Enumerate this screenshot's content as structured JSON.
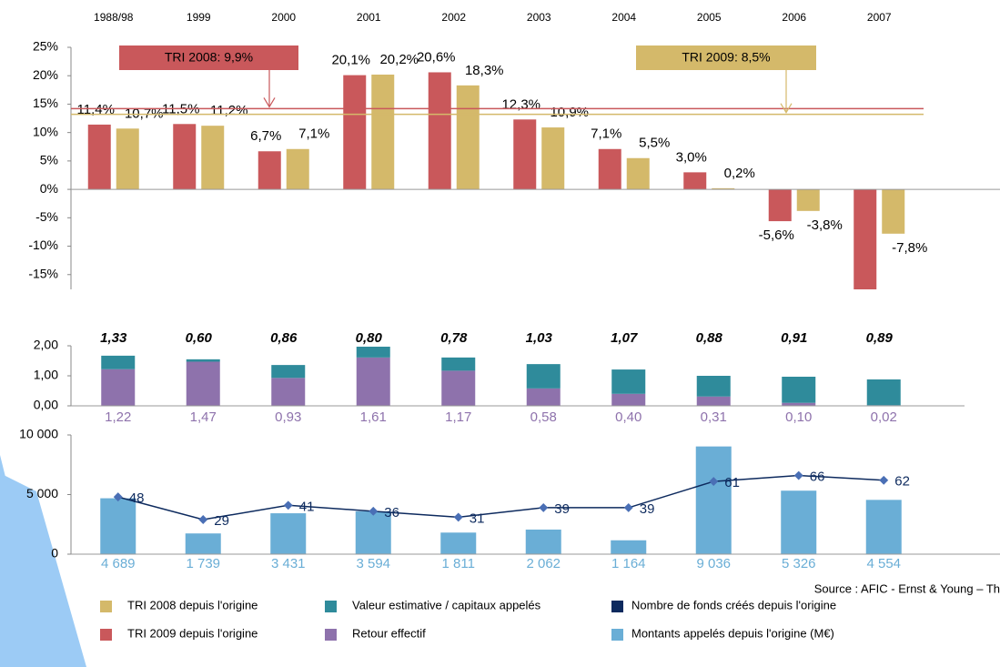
{
  "chart_data": [
    {
      "type": "bar",
      "categories": [
        "1988/98",
        "1999",
        "2000",
        "2001",
        "2002",
        "2003",
        "2004",
        "2005",
        "2006",
        "2007"
      ],
      "series": [
        {
          "name": "TRI 2009 depuis l'origine",
          "color": "#c9585b",
          "values": [
            11.4,
            11.5,
            6.7,
            20.1,
            20.6,
            12.3,
            7.1,
            3.0,
            -5.6,
            -17.6
          ],
          "value_labels": [
            "11,4%",
            "11,5%",
            "6,7%",
            "20,1%",
            "20,6%",
            "12,3%",
            "7,1%",
            "3,0%",
            "-5,6%",
            null
          ]
        },
        {
          "name": "TRI 2008 depuis l'origine",
          "color": "#d4b96a",
          "values": [
            10.7,
            11.2,
            7.1,
            20.2,
            18.3,
            10.9,
            5.5,
            0.2,
            -3.8,
            -7.8
          ],
          "value_labels": [
            "10,7%",
            "11,2%",
            "7,1%",
            "20,2%",
            "18,3%",
            "10,9%",
            "5,5%",
            "0,2%",
            "-3,8%",
            "-7,8%"
          ]
        }
      ],
      "ylim": [
        -17.6,
        25
      ],
      "yticks": [
        {
          "value": 25,
          "label": "25%"
        },
        {
          "value": 20,
          "label": "20%"
        },
        {
          "value": 15,
          "label": "15%"
        },
        {
          "value": 10,
          "label": "10%"
        },
        {
          "value": 5,
          "label": "5%"
        },
        {
          "value": 0,
          "label": "0%"
        },
        {
          "value": -5,
          "label": "-5%"
        },
        {
          "value": -10,
          "label": "-10%"
        },
        {
          "value": -15,
          "label": "-15%"
        }
      ],
      "annotations": [
        {
          "text": "TRI 2008: 9,9%",
          "color": "#c9585b",
          "y": 14.2
        },
        {
          "text": "TRI 2009: 8,5%",
          "color": "#d4b96a",
          "y": 13.2
        }
      ]
    },
    {
      "type": "bar",
      "stacked": true,
      "series": [
        {
          "name": "Retour effectif",
          "color": "#8e72ac",
          "values": [
            1.22,
            1.47,
            0.93,
            1.61,
            1.17,
            0.58,
            0.4,
            0.31,
            0.1,
            0.02
          ],
          "value_labels": [
            "1,22",
            "1,47",
            "0,93",
            "1,61",
            "1,17",
            "0,58",
            "0,40",
            "0,31",
            "0,10",
            "0,02"
          ]
        },
        {
          "name": "Valeur estimative / capitaux appelés",
          "color": "#2f8b9b",
          "values": [
            0.45,
            0.08,
            0.43,
            0.36,
            0.44,
            0.81,
            0.81,
            0.69,
            0.87,
            0.86
          ]
        }
      ],
      "top_labels": [
        "1,33",
        "0,60",
        "0,86",
        "0,80",
        "0,78",
        "1,03",
        "1,07",
        "0,88",
        "0,91",
        "0,89"
      ],
      "ylim": [
        0,
        2
      ],
      "yticks": [
        {
          "value": 2,
          "label": "2,00"
        },
        {
          "value": 1,
          "label": "1,00"
        },
        {
          "value": 0,
          "label": "0,00"
        }
      ]
    },
    {
      "type": "bar",
      "series": [
        {
          "name": "Montants appelés depuis l'origine (M€)",
          "color": "#6aaed6",
          "values": [
            4689,
            1739,
            3431,
            3594,
            1811,
            2062,
            1164,
            9036,
            5326,
            4554
          ],
          "value_labels": [
            "4 689",
            "1 739",
            "3 431",
            "3 594",
            "1 811",
            "2 062",
            "1 164",
            "9 036",
            "5 326",
            "4 554"
          ]
        },
        {
          "name": "Nombre de fonds créés depuis l'origine",
          "color": "#0d2a5e",
          "type": "line",
          "axis": "y2",
          "values": [
            48,
            29,
            41,
            36,
            31,
            39,
            39,
            61,
            66,
            62
          ]
        }
      ],
      "ylim": [
        0,
        10000
      ],
      "yticks": [
        {
          "value": 10000,
          "label": "10 000"
        },
        {
          "value": 5000,
          "label": "5 000"
        },
        0
      ],
      "y2lim": [
        0,
        100
      ],
      "source": "Source : AFIC - Ernst & Young – Th"
    }
  ]
}
